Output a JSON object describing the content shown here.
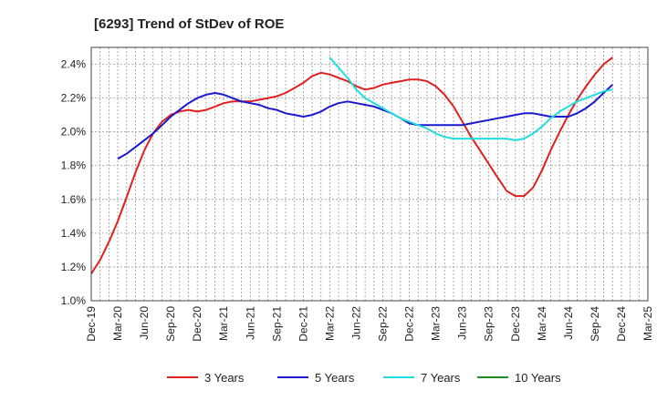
{
  "chart_data": {
    "type": "line",
    "title": "[6293]  Trend of StDev of ROE",
    "xlabel": "",
    "ylabel": "",
    "ylim": [
      1.0,
      2.5
    ],
    "y_ticks": [
      1.0,
      1.2,
      1.4,
      1.6,
      1.8,
      2.0,
      2.2,
      2.4
    ],
    "y_tick_labels": [
      "1.0%",
      "1.2%",
      "1.4%",
      "1.6%",
      "1.8%",
      "2.0%",
      "2.2%",
      "2.4%"
    ],
    "x_tick_labels": [
      "Dec-19",
      "Mar-20",
      "Jun-20",
      "Sep-20",
      "Dec-20",
      "Mar-21",
      "Jun-21",
      "Sep-21",
      "Dec-21",
      "Mar-22",
      "Jun-22",
      "Sep-22",
      "Dec-22",
      "Mar-23",
      "Jun-23",
      "Sep-23",
      "Dec-23",
      "Mar-24",
      "Jun-24",
      "Sep-24",
      "Dec-24",
      "Mar-25"
    ],
    "grid": true,
    "legend_position": "bottom",
    "series": [
      {
        "name": "3 Years",
        "color": "#e02020",
        "points": [
          [
            0,
            1.16
          ],
          [
            0.33,
            1.24
          ],
          [
            0.67,
            1.35
          ],
          [
            1,
            1.47
          ],
          [
            1.33,
            1.61
          ],
          [
            1.67,
            1.76
          ],
          [
            2,
            1.89
          ],
          [
            2.33,
            1.99
          ],
          [
            2.67,
            2.06
          ],
          [
            3,
            2.1
          ],
          [
            3.33,
            2.12
          ],
          [
            3.67,
            2.13
          ],
          [
            4,
            2.12
          ],
          [
            4.33,
            2.13
          ],
          [
            4.67,
            2.15
          ],
          [
            5,
            2.17
          ],
          [
            5.33,
            2.18
          ],
          [
            5.67,
            2.18
          ],
          [
            6,
            2.18
          ],
          [
            6.33,
            2.19
          ],
          [
            6.67,
            2.2
          ],
          [
            7,
            2.21
          ],
          [
            7.33,
            2.23
          ],
          [
            7.67,
            2.26
          ],
          [
            8,
            2.29
          ],
          [
            8.33,
            2.33
          ],
          [
            8.67,
            2.35
          ],
          [
            9,
            2.34
          ],
          [
            9.33,
            2.32
          ],
          [
            9.67,
            2.3
          ],
          [
            10,
            2.27
          ],
          [
            10.33,
            2.25
          ],
          [
            10.67,
            2.26
          ],
          [
            11,
            2.28
          ],
          [
            11.33,
            2.29
          ],
          [
            11.67,
            2.3
          ],
          [
            12,
            2.31
          ],
          [
            12.33,
            2.31
          ],
          [
            12.67,
            2.3
          ],
          [
            13,
            2.27
          ],
          [
            13.33,
            2.22
          ],
          [
            13.67,
            2.15
          ],
          [
            14,
            2.06
          ],
          [
            14.33,
            1.97
          ],
          [
            14.67,
            1.89
          ],
          [
            15,
            1.81
          ],
          [
            15.33,
            1.73
          ],
          [
            15.67,
            1.65
          ],
          [
            16,
            1.62
          ],
          [
            16.33,
            1.62
          ],
          [
            16.67,
            1.67
          ],
          [
            17,
            1.77
          ],
          [
            17.33,
            1.89
          ],
          [
            17.67,
            2.0
          ],
          [
            18,
            2.1
          ],
          [
            18.33,
            2.19
          ],
          [
            18.67,
            2.27
          ],
          [
            19,
            2.34
          ],
          [
            19.33,
            2.4
          ],
          [
            19.67,
            2.44
          ]
        ]
      },
      {
        "name": "5 Years",
        "color": "#1a1acc",
        "points": [
          [
            1,
            1.84
          ],
          [
            1.33,
            1.87
          ],
          [
            1.67,
            1.91
          ],
          [
            2,
            1.95
          ],
          [
            2.33,
            1.99
          ],
          [
            2.67,
            2.04
          ],
          [
            3,
            2.09
          ],
          [
            3.33,
            2.13
          ],
          [
            3.67,
            2.17
          ],
          [
            4,
            2.2
          ],
          [
            4.33,
            2.22
          ],
          [
            4.67,
            2.23
          ],
          [
            5,
            2.22
          ],
          [
            5.33,
            2.2
          ],
          [
            5.67,
            2.18
          ],
          [
            6,
            2.17
          ],
          [
            6.33,
            2.16
          ],
          [
            6.67,
            2.14
          ],
          [
            7,
            2.13
          ],
          [
            7.33,
            2.11
          ],
          [
            7.67,
            2.1
          ],
          [
            8,
            2.09
          ],
          [
            8.33,
            2.1
          ],
          [
            8.67,
            2.12
          ],
          [
            9,
            2.15
          ],
          [
            9.33,
            2.17
          ],
          [
            9.67,
            2.18
          ],
          [
            10,
            2.17
          ],
          [
            10.33,
            2.16
          ],
          [
            10.67,
            2.15
          ],
          [
            11,
            2.13
          ],
          [
            11.33,
            2.11
          ],
          [
            11.67,
            2.08
          ],
          [
            12,
            2.05
          ],
          [
            12.33,
            2.04
          ],
          [
            12.67,
            2.04
          ],
          [
            13,
            2.04
          ],
          [
            13.33,
            2.04
          ],
          [
            13.67,
            2.04
          ],
          [
            14,
            2.04
          ],
          [
            14.33,
            2.05
          ],
          [
            14.67,
            2.06
          ],
          [
            15,
            2.07
          ],
          [
            15.33,
            2.08
          ],
          [
            15.67,
            2.09
          ],
          [
            16,
            2.1
          ],
          [
            16.33,
            2.11
          ],
          [
            16.67,
            2.11
          ],
          [
            17,
            2.1
          ],
          [
            17.33,
            2.09
          ],
          [
            17.67,
            2.09
          ],
          [
            18,
            2.09
          ],
          [
            18.33,
            2.11
          ],
          [
            18.67,
            2.14
          ],
          [
            19,
            2.18
          ],
          [
            19.33,
            2.23
          ],
          [
            19.67,
            2.28
          ]
        ]
      },
      {
        "name": "7 Years",
        "color": "#22dddd",
        "points": [
          [
            9,
            2.44
          ],
          [
            9.33,
            2.38
          ],
          [
            9.67,
            2.32
          ],
          [
            10,
            2.25
          ],
          [
            10.33,
            2.2
          ],
          [
            10.67,
            2.17
          ],
          [
            11,
            2.14
          ],
          [
            11.33,
            2.11
          ],
          [
            11.67,
            2.08
          ],
          [
            12,
            2.06
          ],
          [
            12.33,
            2.04
          ],
          [
            12.67,
            2.02
          ],
          [
            13,
            1.99
          ],
          [
            13.33,
            1.97
          ],
          [
            13.67,
            1.96
          ],
          [
            14,
            1.96
          ],
          [
            14.33,
            1.96
          ],
          [
            14.67,
            1.96
          ],
          [
            15,
            1.96
          ],
          [
            15.33,
            1.96
          ],
          [
            15.67,
            1.96
          ],
          [
            16,
            1.95
          ],
          [
            16.33,
            1.96
          ],
          [
            16.67,
            1.99
          ],
          [
            17,
            2.03
          ],
          [
            17.33,
            2.08
          ],
          [
            17.67,
            2.12
          ],
          [
            18,
            2.15
          ],
          [
            18.33,
            2.18
          ],
          [
            18.67,
            2.2
          ],
          [
            19,
            2.22
          ],
          [
            19.33,
            2.24
          ],
          [
            19.67,
            2.25
          ]
        ]
      },
      {
        "name": "10 Years",
        "color": "#1e8c1e",
        "points": []
      }
    ]
  }
}
